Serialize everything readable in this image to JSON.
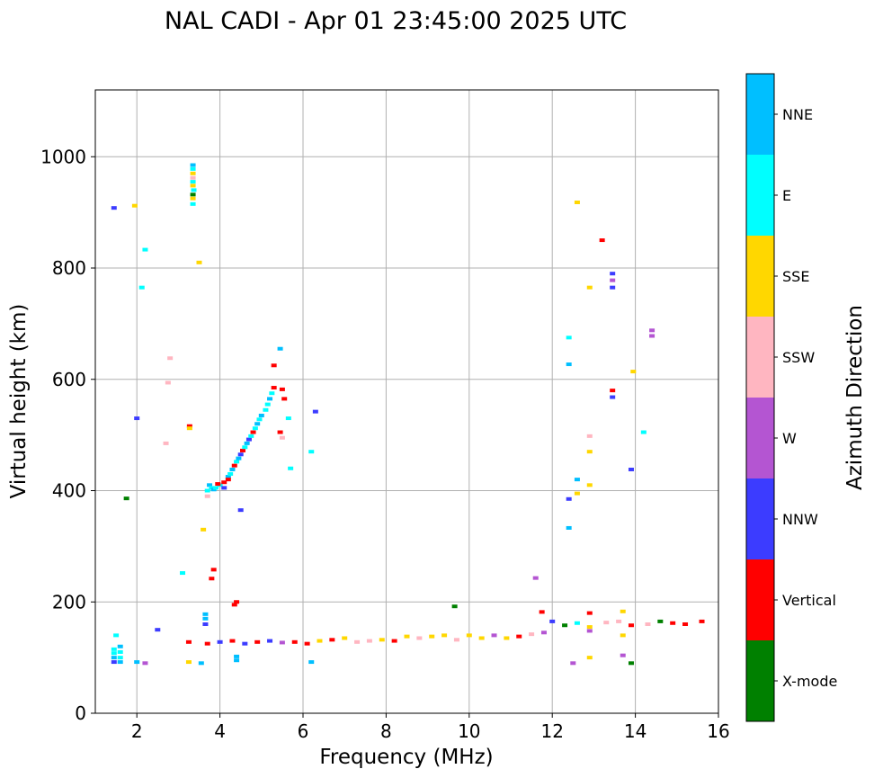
{
  "chart_data": {
    "type": "scatter",
    "title": "NAL CADI - Apr 01 23:45:00 2025 UTC",
    "xlabel": "Frequency (MHz)",
    "ylabel": "Virtual height (km)",
    "xlim": [
      1,
      16
    ],
    "ylim": [
      0,
      1120
    ],
    "xticks": [
      2,
      4,
      6,
      8,
      10,
      12,
      14,
      16
    ],
    "yticks": [
      0,
      200,
      400,
      600,
      800,
      1000
    ],
    "grid": true,
    "colorbar": {
      "label": "Azimuth Direction",
      "categories": [
        {
          "name": "X-mode",
          "color": "#008000"
        },
        {
          "name": "Vertical",
          "color": "#ff0000"
        },
        {
          "name": "NNW",
          "color": "#3c3cff"
        },
        {
          "name": "W",
          "color": "#b455d2"
        },
        {
          "name": "SSW",
          "color": "#ffb6c1"
        },
        {
          "name": "SSE",
          "color": "#ffd700"
        },
        {
          "name": "E",
          "color": "#00ffff"
        },
        {
          "name": "NNE",
          "color": "#00bfff"
        }
      ]
    },
    "points": [
      [
        1.45,
        908,
        "NNW"
      ],
      [
        1.95,
        912,
        "SSE"
      ],
      [
        2.2,
        833,
        "E"
      ],
      [
        2.12,
        765,
        "E"
      ],
      [
        1.5,
        140,
        "E"
      ],
      [
        1.45,
        115,
        "E"
      ],
      [
        1.45,
        108,
        "E"
      ],
      [
        1.45,
        100,
        "NNE"
      ],
      [
        1.45,
        92,
        "NNW"
      ],
      [
        1.6,
        120,
        "NNE"
      ],
      [
        1.6,
        110,
        "E"
      ],
      [
        1.6,
        100,
        "E"
      ],
      [
        1.6,
        92,
        "NNE"
      ],
      [
        1.75,
        386,
        "X-mode"
      ],
      [
        2.0,
        92,
        "NNE"
      ],
      [
        2.2,
        90,
        "W"
      ],
      [
        2.0,
        530,
        "NNW"
      ],
      [
        2.5,
        150,
        "NNW"
      ],
      [
        2.7,
        485,
        "SSW"
      ],
      [
        2.8,
        638,
        "SSW"
      ],
      [
        2.75,
        594,
        "SSW"
      ],
      [
        3.1,
        252,
        "E"
      ],
      [
        3.25,
        128,
        "Vertical"
      ],
      [
        3.25,
        92,
        "SSE"
      ],
      [
        3.27,
        516,
        "Vertical"
      ],
      [
        3.27,
        512,
        "SSE"
      ],
      [
        3.35,
        985,
        "NNE"
      ],
      [
        3.35,
        978,
        "E"
      ],
      [
        3.35,
        970,
        "SSE"
      ],
      [
        3.35,
        962,
        "SSW"
      ],
      [
        3.35,
        955,
        "E"
      ],
      [
        3.35,
        948,
        "SSE"
      ],
      [
        3.37,
        940,
        "E"
      ],
      [
        3.35,
        932,
        "X-mode"
      ],
      [
        3.35,
        925,
        "SSE"
      ],
      [
        3.35,
        915,
        "E"
      ],
      [
        3.5,
        810,
        "SSE"
      ],
      [
        3.6,
        330,
        "SSE"
      ],
      [
        3.55,
        90,
        "NNE"
      ],
      [
        3.65,
        178,
        "NNE"
      ],
      [
        3.65,
        170,
        "NNE"
      ],
      [
        3.65,
        160,
        "NNW"
      ],
      [
        3.85,
        258,
        "Vertical"
      ],
      [
        3.8,
        242,
        "Vertical"
      ],
      [
        4.4,
        200,
        "Vertical"
      ],
      [
        4.35,
        195,
        "Vertical"
      ],
      [
        3.7,
        400,
        "E"
      ],
      [
        3.75,
        410,
        "NNE"
      ],
      [
        3.8,
        405,
        "E"
      ],
      [
        3.85,
        402,
        "NNE"
      ],
      [
        3.9,
        405,
        "E"
      ],
      [
        4.0,
        410,
        "E"
      ],
      [
        4.1,
        415,
        "Vertical"
      ],
      [
        4.2,
        425,
        "NNE"
      ],
      [
        4.25,
        430,
        "E"
      ],
      [
        4.3,
        438,
        "NNE"
      ],
      [
        4.35,
        445,
        "Vertical"
      ],
      [
        4.4,
        452,
        "E"
      ],
      [
        4.45,
        458,
        "NNE"
      ],
      [
        4.5,
        465,
        "NNW"
      ],
      [
        4.55,
        472,
        "Vertical"
      ],
      [
        4.6,
        478,
        "E"
      ],
      [
        4.65,
        485,
        "NNE"
      ],
      [
        4.7,
        492,
        "NNW"
      ],
      [
        4.75,
        498,
        "E"
      ],
      [
        4.8,
        505,
        "Vertical"
      ],
      [
        4.85,
        512,
        "E"
      ],
      [
        4.9,
        520,
        "NNE"
      ],
      [
        4.95,
        528,
        "E"
      ],
      [
        5.0,
        535,
        "NNE"
      ],
      [
        5.1,
        545,
        "E"
      ],
      [
        5.15,
        555,
        "E"
      ],
      [
        5.2,
        565,
        "NNE"
      ],
      [
        5.25,
        575,
        "E"
      ],
      [
        5.3,
        585,
        "Vertical"
      ],
      [
        5.3,
        625,
        "Vertical"
      ],
      [
        5.45,
        655,
        "NNE"
      ],
      [
        5.5,
        582,
        "Vertical"
      ],
      [
        5.55,
        565,
        "Vertical"
      ],
      [
        5.45,
        505,
        "Vertical"
      ],
      [
        5.5,
        495,
        "SSW"
      ],
      [
        5.65,
        530,
        "E"
      ],
      [
        5.7,
        440,
        "E"
      ],
      [
        4.5,
        365,
        "NNW"
      ],
      [
        4.2,
        420,
        "Vertical"
      ],
      [
        4.1,
        405,
        "NNW"
      ],
      [
        3.7,
        390,
        "SSW"
      ],
      [
        3.95,
        412,
        "Vertical"
      ],
      [
        6.3,
        542,
        "NNW"
      ],
      [
        6.2,
        470,
        "E"
      ],
      [
        6.2,
        92,
        "NNE"
      ],
      [
        4.4,
        95,
        "NNE"
      ],
      [
        4.4,
        102,
        "NNE"
      ],
      [
        3.7,
        125,
        "Vertical"
      ],
      [
        4.0,
        128,
        "NNW"
      ],
      [
        4.3,
        130,
        "Vertical"
      ],
      [
        4.6,
        125,
        "NNW"
      ],
      [
        4.9,
        128,
        "Vertical"
      ],
      [
        5.2,
        130,
        "NNW"
      ],
      [
        5.5,
        127,
        "W"
      ],
      [
        5.8,
        128,
        "Vertical"
      ],
      [
        6.1,
        125,
        "Vertical"
      ],
      [
        6.4,
        130,
        "SSE"
      ],
      [
        6.7,
        132,
        "Vertical"
      ],
      [
        7.0,
        135,
        "SSE"
      ],
      [
        7.3,
        128,
        "SSW"
      ],
      [
        7.6,
        130,
        "SSW"
      ],
      [
        7.9,
        132,
        "SSE"
      ],
      [
        8.2,
        130,
        "Vertical"
      ],
      [
        8.5,
        138,
        "SSE"
      ],
      [
        8.8,
        135,
        "SSW"
      ],
      [
        9.1,
        138,
        "SSE"
      ],
      [
        9.4,
        140,
        "SSE"
      ],
      [
        9.7,
        132,
        "SSW"
      ],
      [
        10.0,
        140,
        "SSE"
      ],
      [
        10.3,
        135,
        "SSE"
      ],
      [
        10.6,
        140,
        "W"
      ],
      [
        10.9,
        135,
        "SSE"
      ],
      [
        11.2,
        138,
        "Vertical"
      ],
      [
        11.5,
        142,
        "SSW"
      ],
      [
        11.8,
        145,
        "W"
      ],
      [
        9.65,
        192,
        "X-mode"
      ],
      [
        11.6,
        243,
        "W"
      ],
      [
        11.75,
        182,
        "Vertical"
      ],
      [
        12.0,
        165,
        "NNW"
      ],
      [
        12.3,
        158,
        "X-mode"
      ],
      [
        12.6,
        162,
        "E"
      ],
      [
        12.9,
        148,
        "W"
      ],
      [
        12.5,
        90,
        "W"
      ],
      [
        12.9,
        100,
        "SSE"
      ],
      [
        12.9,
        155,
        "SSE"
      ],
      [
        12.9,
        180,
        "Vertical"
      ],
      [
        13.3,
        163,
        "SSW"
      ],
      [
        13.6,
        165,
        "SSW"
      ],
      [
        13.9,
        158,
        "Vertical"
      ],
      [
        14.3,
        160,
        "SSW"
      ],
      [
        14.6,
        165,
        "X-mode"
      ],
      [
        14.9,
        162,
        "Vertical"
      ],
      [
        15.2,
        160,
        "Vertical"
      ],
      [
        15.6,
        165,
        "Vertical"
      ],
      [
        13.7,
        183,
        "SSE"
      ],
      [
        13.7,
        140,
        "SSE"
      ],
      [
        13.7,
        104,
        "W"
      ],
      [
        13.9,
        90,
        "X-mode"
      ],
      [
        12.4,
        675,
        "E"
      ],
      [
        12.4,
        627,
        "NNE"
      ],
      [
        12.6,
        918,
        "SSE"
      ],
      [
        12.9,
        765,
        "SSE"
      ],
      [
        12.4,
        385,
        "NNW"
      ],
      [
        12.4,
        333,
        "NNE"
      ],
      [
        12.6,
        420,
        "NNE"
      ],
      [
        12.6,
        395,
        "SSE"
      ],
      [
        12.9,
        498,
        "SSW"
      ],
      [
        12.9,
        470,
        "SSE"
      ],
      [
        12.9,
        410,
        "SSE"
      ],
      [
        13.2,
        850,
        "Vertical"
      ],
      [
        13.45,
        790,
        "NNW"
      ],
      [
        13.45,
        778,
        "W"
      ],
      [
        13.45,
        765,
        "NNW"
      ],
      [
        13.45,
        580,
        "Vertical"
      ],
      [
        13.45,
        568,
        "NNW"
      ],
      [
        13.9,
        438,
        "NNW"
      ],
      [
        13.95,
        614,
        "SSE"
      ],
      [
        14.2,
        505,
        "E"
      ],
      [
        14.4,
        688,
        "W"
      ],
      [
        14.4,
        678,
        "W"
      ]
    ]
  }
}
